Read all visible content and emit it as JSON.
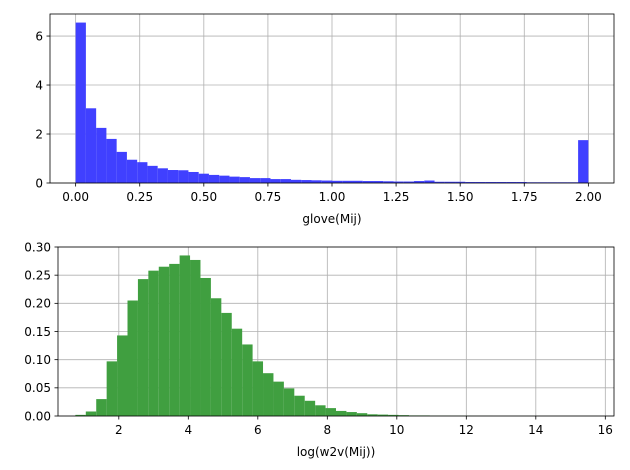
{
  "chart_data": [
    {
      "type": "histogram",
      "title": "",
      "xlabel": "glove(Mij)",
      "ylabel": "",
      "xlim": [
        -0.1,
        2.1
      ],
      "ylim": [
        0,
        6.9
      ],
      "xticks": [
        0.0,
        0.25,
        0.5,
        0.75,
        1.0,
        1.25,
        1.5,
        1.75,
        2.0
      ],
      "xtick_labels": [
        "0.00",
        "0.25",
        "0.50",
        "0.75",
        "1.00",
        "1.25",
        "1.50",
        "1.75",
        "2.00"
      ],
      "yticks": [
        0,
        2,
        4,
        6
      ],
      "ytick_labels": [
        "0",
        "2",
        "4",
        "6"
      ],
      "grid": true,
      "color": "#4040ff",
      "bins": {
        "start": 0.0,
        "width": 0.04
      },
      "values": [
        6.55,
        3.05,
        2.25,
        1.8,
        1.27,
        0.95,
        0.85,
        0.7,
        0.6,
        0.53,
        0.52,
        0.45,
        0.38,
        0.33,
        0.3,
        0.26,
        0.24,
        0.2,
        0.2,
        0.16,
        0.16,
        0.13,
        0.12,
        0.11,
        0.1,
        0.09,
        0.09,
        0.09,
        0.08,
        0.08,
        0.07,
        0.06,
        0.06,
        0.08,
        0.1,
        0.05,
        0.05,
        0.05,
        0.04,
        0.04,
        0.04,
        0.04,
        0.04,
        0.04,
        0.03,
        0.03,
        0.03,
        0.03,
        0.03,
        1.75
      ]
    },
    {
      "type": "histogram",
      "title": "",
      "xlabel": "log(w2v(Mij))",
      "ylabel": "",
      "xlim": [
        0.25,
        16.25
      ],
      "ylim": [
        0,
        0.3
      ],
      "xticks": [
        2,
        4,
        6,
        8,
        10,
        12,
        14,
        16
      ],
      "xtick_labels": [
        "2",
        "4",
        "6",
        "8",
        "10",
        "12",
        "14",
        "16"
      ],
      "yticks": [
        0.0,
        0.05,
        0.1,
        0.15,
        0.2,
        0.25,
        0.3
      ],
      "ytick_labels": [
        "0.00",
        "0.05",
        "0.10",
        "0.15",
        "0.20",
        "0.25",
        "0.30"
      ],
      "grid": true,
      "color": "#409f40",
      "bins": {
        "start": 0.75,
        "width": 0.3
      },
      "values": [
        0.002,
        0.008,
        0.03,
        0.097,
        0.143,
        0.205,
        0.243,
        0.258,
        0.265,
        0.27,
        0.285,
        0.277,
        0.245,
        0.209,
        0.183,
        0.155,
        0.127,
        0.097,
        0.076,
        0.061,
        0.049,
        0.036,
        0.027,
        0.019,
        0.014,
        0.009,
        0.007,
        0.005,
        0.003,
        0.0025,
        0.002,
        0.0015,
        0.001,
        0.001,
        0.0005,
        0.0005,
        0.0003,
        0.0003,
        0.0002,
        0.0002,
        0.0001,
        0.0001,
        0.0001,
        0.0001,
        0.0001,
        0.0001,
        0.0001,
        0.0001,
        0.0001,
        0.0001
      ]
    }
  ]
}
